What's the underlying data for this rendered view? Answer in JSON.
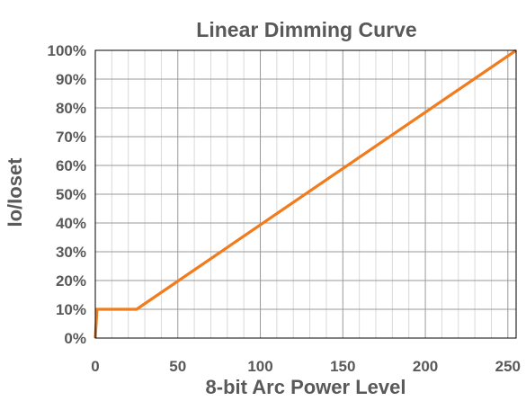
{
  "chart_data": {
    "type": "line",
    "title": "Linear Dimming Curve",
    "xlabel": "8-bit Arc Power Level",
    "ylabel": "Io/Ioset",
    "xlim": [
      0,
      255
    ],
    "ylim": [
      0,
      100
    ],
    "x_ticks": [
      0,
      50,
      100,
      150,
      200,
      250
    ],
    "x_minor_step": 10,
    "y_ticks": [
      0,
      10,
      20,
      30,
      40,
      50,
      60,
      70,
      80,
      90,
      100
    ],
    "y_tick_labels": [
      "0%",
      "10%",
      "20%",
      "30%",
      "40%",
      "50%",
      "60%",
      "70%",
      "80%",
      "90%",
      "100%"
    ],
    "grid": true,
    "legend": "none",
    "series": [
      {
        "color": "#f07c1e",
        "x": [
          0,
          1,
          25,
          255
        ],
        "y": [
          0,
          10,
          10,
          100
        ]
      }
    ],
    "colors": {
      "line": "#f07c1e",
      "text": "#595959",
      "grid": "#c8c8c8",
      "frame": "#000000"
    }
  }
}
